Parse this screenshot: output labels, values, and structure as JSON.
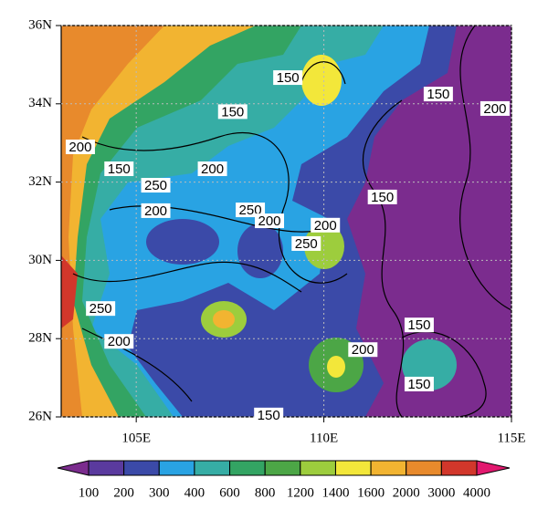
{
  "chart_data": {
    "type": "contour-map",
    "xlim": [
      103,
      115
    ],
    "ylim": [
      26,
      36
    ],
    "xticks": [
      {
        "value": 105,
        "label": "105E"
      },
      {
        "value": 110,
        "label": "110E"
      },
      {
        "value": 115,
        "label": "115E"
      }
    ],
    "yticks": [
      {
        "value": 26,
        "label": "26N"
      },
      {
        "value": 28,
        "label": "28N"
      },
      {
        "value": 30,
        "label": "30N"
      },
      {
        "value": 32,
        "label": "32N"
      },
      {
        "value": 34,
        "label": "34N"
      },
      {
        "value": 36,
        "label": "36N"
      }
    ],
    "grid": true,
    "contour_labels": [
      {
        "lon": 109.04,
        "lat": 34.67,
        "value": 150
      },
      {
        "lon": 113.05,
        "lat": 34.25,
        "value": 150
      },
      {
        "lon": 114.56,
        "lat": 33.88,
        "value": 200
      },
      {
        "lon": 107.57,
        "lat": 33.8,
        "value": 150
      },
      {
        "lon": 103.51,
        "lat": 32.9,
        "value": 200
      },
      {
        "lon": 104.54,
        "lat": 32.34,
        "value": 150
      },
      {
        "lon": 107.03,
        "lat": 32.34,
        "value": 200
      },
      {
        "lon": 105.52,
        "lat": 31.92,
        "value": 250
      },
      {
        "lon": 111.56,
        "lat": 31.62,
        "value": 150
      },
      {
        "lon": 105.52,
        "lat": 31.27,
        "value": 200
      },
      {
        "lon": 108.04,
        "lat": 31.29,
        "value": 250
      },
      {
        "lon": 108.55,
        "lat": 31.01,
        "value": 200
      },
      {
        "lon": 110.04,
        "lat": 30.9,
        "value": 200
      },
      {
        "lon": 109.53,
        "lat": 30.43,
        "value": 250
      },
      {
        "lon": 104.05,
        "lat": 28.77,
        "value": 250
      },
      {
        "lon": 112.54,
        "lat": 28.35,
        "value": 150
      },
      {
        "lon": 104.54,
        "lat": 27.93,
        "value": 200
      },
      {
        "lon": 111.04,
        "lat": 27.72,
        "value": 200
      },
      {
        "lon": 112.54,
        "lat": 26.84,
        "value": 150
      },
      {
        "lon": 108.53,
        "lat": 26.05,
        "value": 150
      }
    ],
    "colorbar": {
      "levels": [
        100,
        200,
        300,
        400,
        600,
        800,
        1200,
        1400,
        1600,
        2000,
        3000,
        4000
      ],
      "colors": [
        "#7b2c8e",
        "#5a3a9e",
        "#3b4aa8",
        "#29a3e3",
        "#36ada5",
        "#33a463",
        "#4ca646",
        "#9dcd3d",
        "#f3e73a",
        "#f2b431",
        "#e88a2c",
        "#d2372b",
        "#e2196f"
      ]
    }
  }
}
